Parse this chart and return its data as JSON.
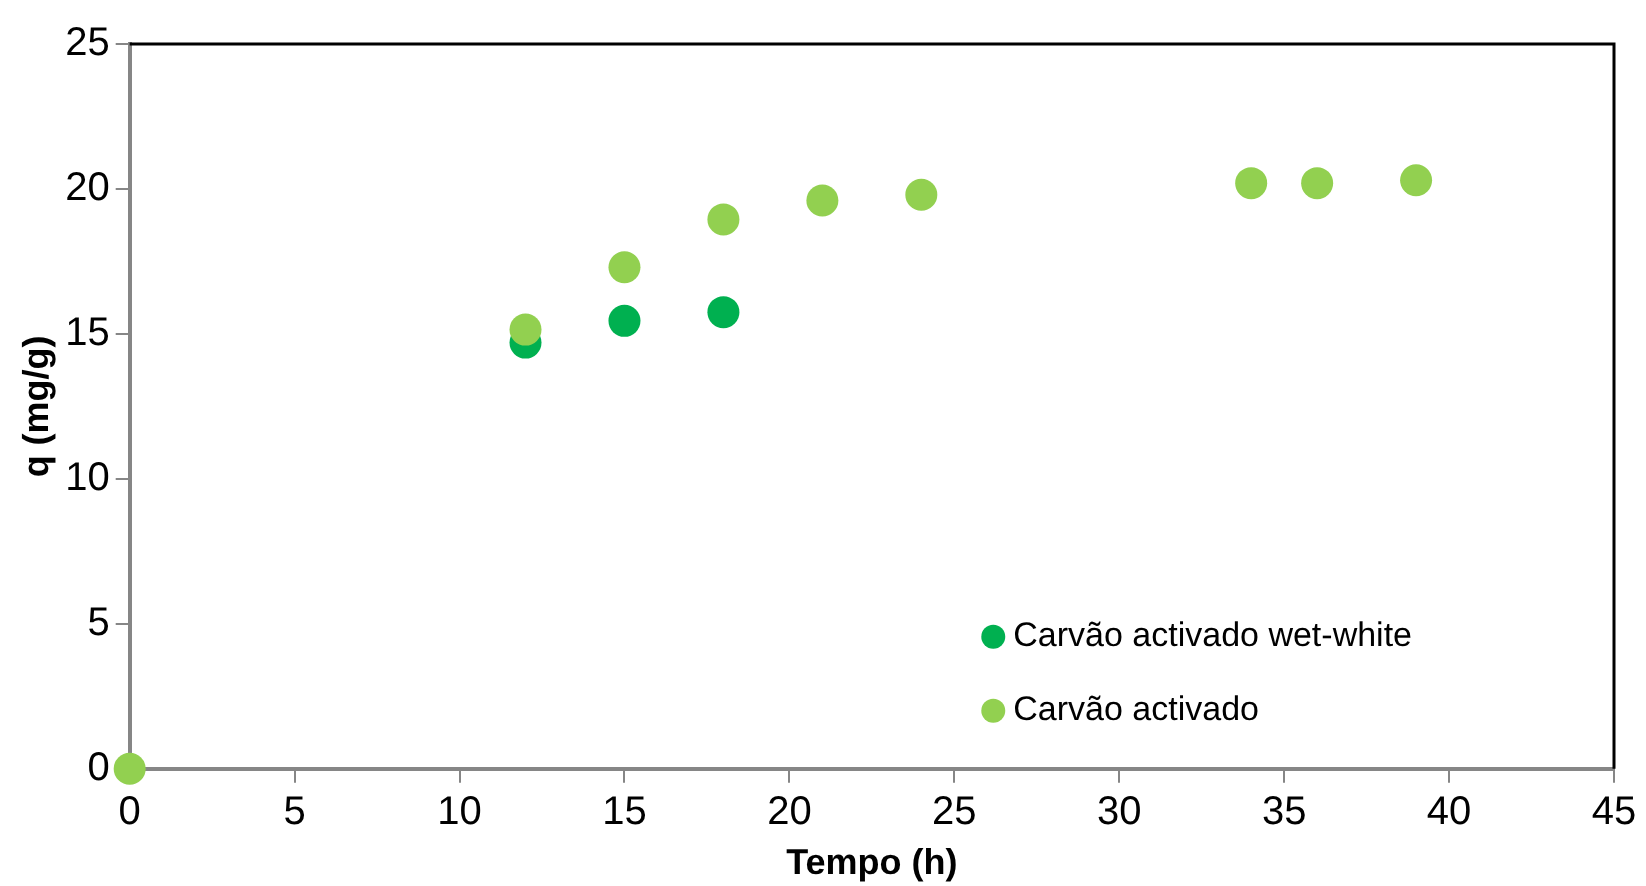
{
  "chart_data": {
    "type": "scatter",
    "xlabel": "Tempo (h)",
    "ylabel": "q (mg/g)",
    "xlim": [
      0,
      45
    ],
    "xticks": [
      0,
      5,
      10,
      15,
      20,
      25,
      30,
      35,
      40,
      45
    ],
    "ylim": [
      0,
      25
    ],
    "yticks": [
      0,
      5,
      10,
      15,
      20,
      25
    ],
    "grid": false,
    "legend": "bottom right",
    "marker": "circle",
    "series": [
      {
        "name": "Carvão activado wet-white",
        "color": "#00b050",
        "x": [
          12,
          15,
          18
        ],
        "values": [
          14.7,
          15.45,
          15.75
        ]
      },
      {
        "name": "Carvão activado",
        "color": "#92d050",
        "x": [
          0,
          12,
          15,
          18,
          21,
          24,
          34,
          36,
          39
        ],
        "values": [
          0,
          15.15,
          17.3,
          18.95,
          19.6,
          19.8,
          20.2,
          20.2,
          20.3
        ]
      }
    ]
  }
}
